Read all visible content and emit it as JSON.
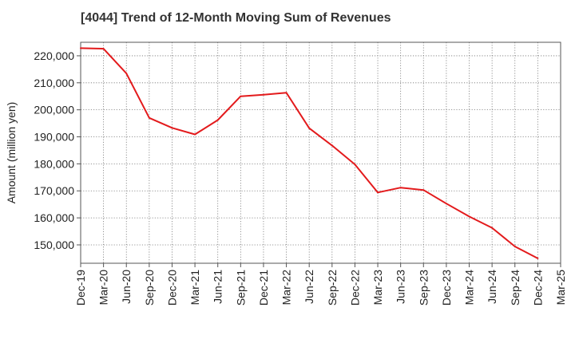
{
  "chart_data": {
    "type": "line",
    "title": "[4044]  Trend of 12-Month Moving Sum of Revenues",
    "xlabel": "",
    "ylabel": "Amount (million yen)",
    "x_tick_labels": [
      "Dec-19",
      "Mar-20",
      "Jun-20",
      "Sep-20",
      "Dec-20",
      "Mar-21",
      "Jun-21",
      "Sep-21",
      "Dec-21",
      "Mar-22",
      "Jun-22",
      "Sep-22",
      "Dec-22",
      "Mar-23",
      "Jun-23",
      "Sep-23",
      "Dec-23",
      "Mar-24",
      "Jun-24",
      "Sep-24",
      "Dec-24",
      "Mar-25"
    ],
    "y_ticks": [
      150000,
      160000,
      170000,
      180000,
      190000,
      200000,
      210000,
      220000
    ],
    "y_tick_labels": [
      "150,000",
      "160,000",
      "170,000",
      "180,000",
      "190,000",
      "200,000",
      "210,000",
      "220,000"
    ],
    "ylim": [
      143200,
      225000
    ],
    "grid": true,
    "series": [
      {
        "color": "#e31a1c",
        "x": [
          "Dec-19",
          "Mar-20",
          "Jun-20",
          "Sep-20",
          "Dec-20",
          "Mar-21",
          "Jun-21",
          "Sep-21",
          "Dec-21",
          "Mar-22",
          "Jun-22",
          "Sep-22",
          "Dec-22",
          "Mar-23",
          "Jun-23",
          "Sep-23",
          "Dec-23",
          "Mar-24",
          "Jun-24",
          "Sep-24",
          "Dec-24"
        ],
        "values": [
          222800,
          222600,
          213500,
          197000,
          193300,
          190900,
          196200,
          205000,
          205600,
          206300,
          193200,
          186800,
          179800,
          169400,
          171200,
          170300,
          165300,
          160500,
          156300,
          149400,
          145000
        ]
      }
    ]
  }
}
